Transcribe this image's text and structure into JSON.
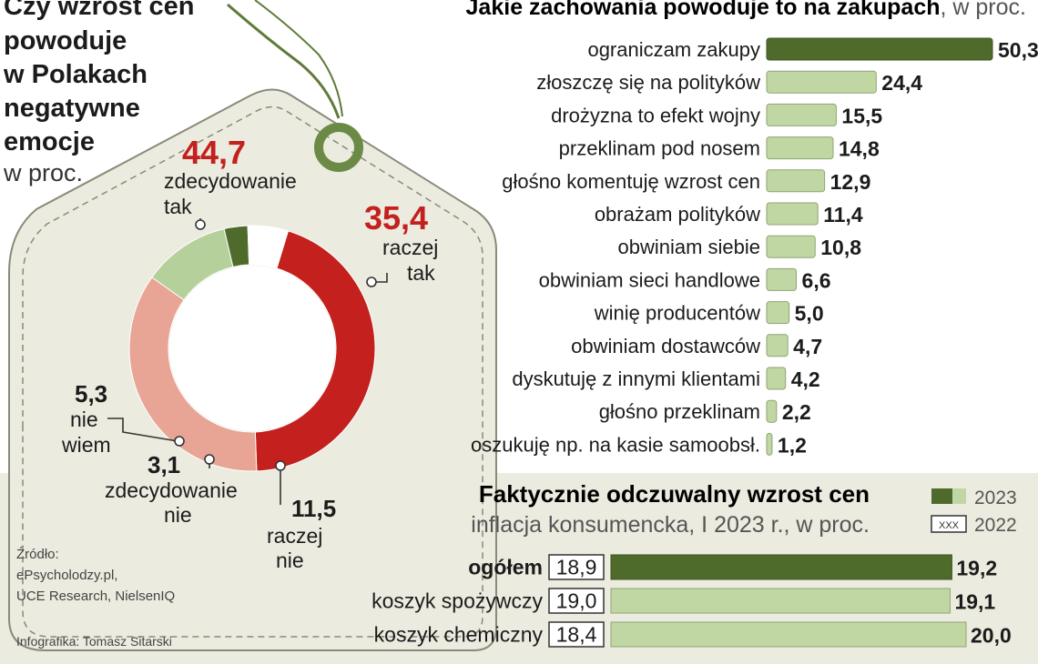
{
  "donut": {
    "title_lines": [
      "Czy wzrost cen",
      "powoduje",
      "w Polakach",
      "negatywne",
      "emocje"
    ],
    "unit": "w proc."
  },
  "chart_data": [
    {
      "type": "pie",
      "title": "Czy wzrost cen powoduje w Polakach negatywne emocje",
      "unit": "w proc.",
      "slices": [
        {
          "label": "zdecydowanie tak",
          "label_lines": [
            "zdecydowanie",
            "tak"
          ],
          "value": 44.7,
          "value_label": "44,7",
          "color": "#c3201e"
        },
        {
          "label": "raczej tak",
          "label_lines": [
            "raczej",
            "tak"
          ],
          "value": 35.4,
          "value_label": "35,4",
          "color": "#e8a595"
        },
        {
          "label": "raczej nie",
          "label_lines": [
            "raczej",
            "nie"
          ],
          "value": 11.5,
          "value_label": "11,5",
          "color": "#b5d09a"
        },
        {
          "label": "zdecydowanie nie",
          "label_lines": [
            "zdecydowanie",
            "nie"
          ],
          "value": 3.1,
          "value_label": "3,1",
          "color": "#4f6b2c"
        },
        {
          "label": "nie wiem",
          "label_lines": [
            "nie",
            "wiem"
          ],
          "value": 5.3,
          "value_label": "5,3",
          "color": "#ffffff"
        }
      ]
    },
    {
      "type": "bar",
      "orientation": "horizontal",
      "title": "Jakie zachowania powoduje to na zakupach",
      "unit": "w proc.",
      "categories": [
        "ograniczam zakupy",
        "złoszczę się na polityków",
        "drożyzna to efekt wojny",
        "przeklinam pod nosem",
        "głośno komentuję wzrost cen",
        "obrażam polityków",
        "obwiniam siebie",
        "obwiniam sieci handlowe",
        "winię producentów",
        "obwiniam dostawców",
        "dyskutuję z innymi klientami",
        "głośno przeklinam",
        "oszukuję np. na kasie samoobsł."
      ],
      "values": [
        50.3,
        24.4,
        15.5,
        14.8,
        12.9,
        11.4,
        10.8,
        6.6,
        5.0,
        4.7,
        4.2,
        2.2,
        1.2
      ],
      "value_labels": [
        "50,3",
        "24,4",
        "15,5",
        "14,8",
        "12,9",
        "11,4",
        "10,8",
        "6,6",
        "5,0",
        "4,7",
        "4,2",
        "2,2",
        "1,2"
      ],
      "colors": {
        "highlight": "#4f6b2c",
        "default": "#c0d7a3"
      }
    },
    {
      "type": "bar",
      "orientation": "horizontal",
      "title": "Faktycznie odczuwalny wzrost cen",
      "subtitle": "inflacja konsumencka, I 2023 r., w proc.",
      "categories": [
        "ogółem",
        "koszyk spożywczy",
        "koszyk chemiczny"
      ],
      "series": [
        {
          "name": "2023",
          "values": [
            19.2,
            19.1,
            20.0
          ],
          "value_labels": [
            "19,2",
            "19,1",
            "20,0"
          ]
        },
        {
          "name": "2022",
          "values": [
            18.9,
            19.0,
            18.4
          ],
          "value_labels": [
            "18,9",
            "19,0",
            "18,4"
          ]
        }
      ],
      "legend": {
        "position": "top-right",
        "box_sample": "XXX"
      },
      "colors": {
        "highlight": "#4f6b2c",
        "default": "#c0d7a3"
      }
    }
  ],
  "source": {
    "label": "Źródło:",
    "lines": [
      "ePsycholodzy.pl,",
      "UCE Research, NielsenIQ"
    ],
    "credit": "Infografika: Tomasz Sitarski"
  }
}
